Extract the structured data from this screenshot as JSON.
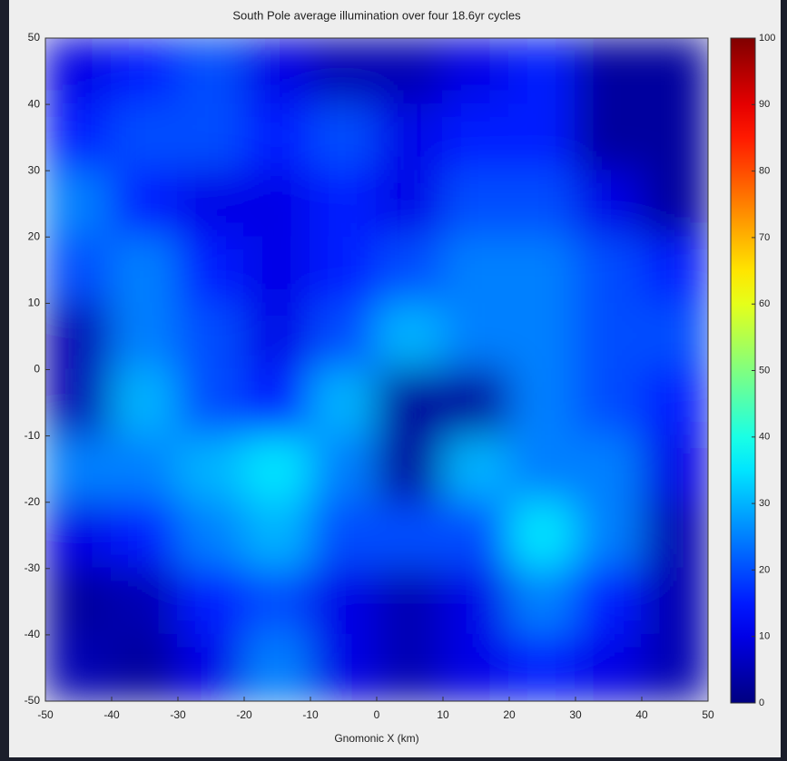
{
  "chart_data": {
    "type": "heatmap",
    "title": "South Pole average illumination over four 18.6yr cycles",
    "xlabel": "Gnomonic X (km)",
    "xlim": [
      -50,
      50
    ],
    "ylim": [
      -50,
      50
    ],
    "xticks": [
      -50,
      -40,
      -30,
      -20,
      -10,
      0,
      10,
      20,
      30,
      40,
      50
    ],
    "yticks": [
      -50,
      -40,
      -30,
      -20,
      -10,
      0,
      10,
      20,
      30,
      40,
      50
    ],
    "colormap": "jet",
    "zlim": [
      0,
      100
    ],
    "zticks": [
      0,
      10,
      20,
      30,
      40,
      50,
      60,
      70,
      80,
      90,
      100
    ],
    "z": [
      [
        10,
        15,
        20,
        10,
        5,
        5,
        10,
        15,
        3,
        3
      ],
      [
        15,
        20,
        20,
        15,
        20,
        10,
        15,
        15,
        3,
        3
      ],
      [
        25,
        15,
        10,
        10,
        15,
        10,
        20,
        20,
        10,
        3
      ],
      [
        20,
        25,
        15,
        10,
        15,
        20,
        25,
        25,
        20,
        15
      ],
      [
        5,
        25,
        20,
        10,
        20,
        30,
        25,
        25,
        20,
        20
      ],
      [
        5,
        30,
        20,
        15,
        30,
        3,
        3,
        25,
        20,
        15
      ],
      [
        25,
        25,
        30,
        35,
        25,
        3,
        30,
        25,
        25,
        10
      ],
      [
        10,
        15,
        25,
        30,
        20,
        20,
        20,
        35,
        25,
        5
      ],
      [
        3,
        5,
        15,
        20,
        10,
        5,
        10,
        25,
        15,
        5
      ],
      [
        5,
        3,
        10,
        25,
        10,
        5,
        10,
        15,
        10,
        5
      ]
    ]
  }
}
